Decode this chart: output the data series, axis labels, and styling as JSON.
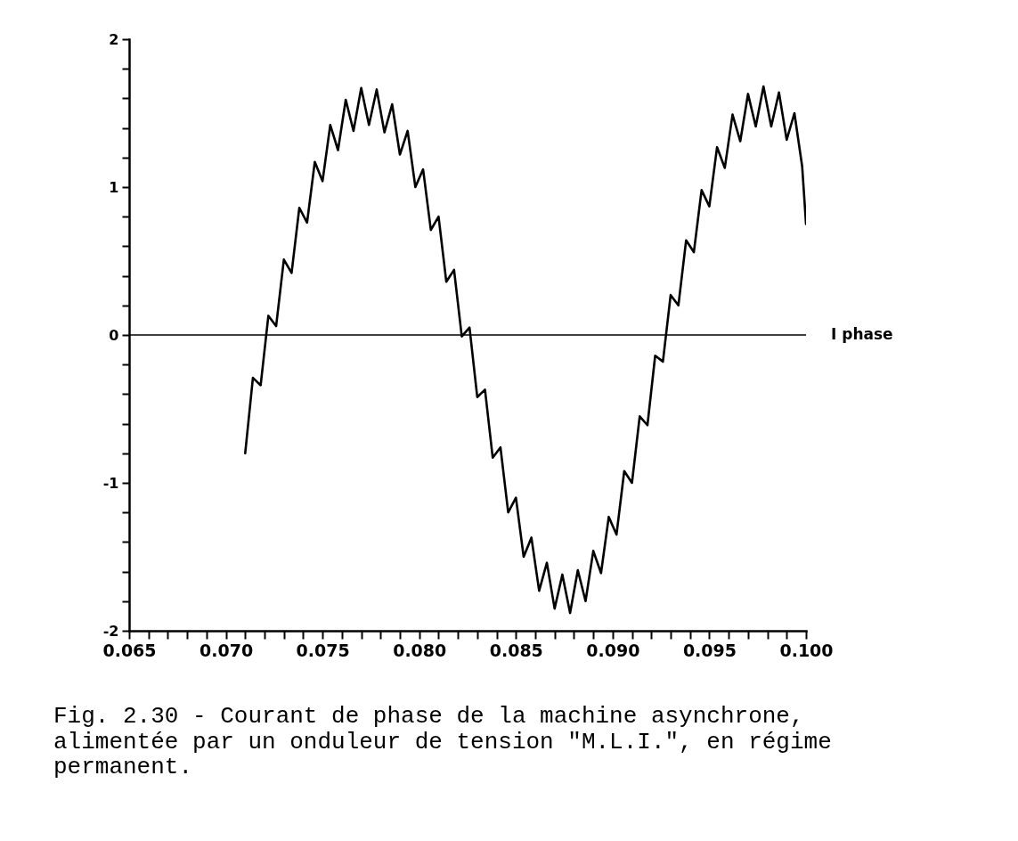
{
  "chart_data": {
    "type": "line",
    "xlim": [
      0.065,
      0.1
    ],
    "ylim": [
      -2,
      2
    ],
    "xticks": [
      0.065,
      {
        "value": 0.066,
        "label": null
      },
      {
        "value": 0.067,
        "label": null
      },
      {
        "value": 0.068,
        "label": null
      },
      {
        "value": 0.069,
        "label": null
      },
      {
        "value": 0.07,
        "label": "0.070"
      },
      {
        "value": 0.071,
        "label": null
      },
      {
        "value": 0.072,
        "label": null
      },
      {
        "value": 0.073,
        "label": null
      },
      {
        "value": 0.074,
        "label": null
      },
      0.075,
      {
        "value": 0.076,
        "label": null
      },
      {
        "value": 0.077,
        "label": null
      },
      {
        "value": 0.078,
        "label": null
      },
      {
        "value": 0.079,
        "label": null
      },
      {
        "value": 0.08,
        "label": "0.080"
      },
      {
        "value": 0.081,
        "label": null
      },
      {
        "value": 0.082,
        "label": null
      },
      {
        "value": 0.083,
        "label": null
      },
      {
        "value": 0.084,
        "label": null
      },
      0.085,
      {
        "value": 0.086,
        "label": null
      },
      {
        "value": 0.087,
        "label": null
      },
      {
        "value": 0.088,
        "label": null
      },
      {
        "value": 0.089,
        "label": null
      },
      {
        "value": 0.09,
        "label": "0.090"
      },
      {
        "value": 0.091,
        "label": null
      },
      {
        "value": 0.092,
        "label": null
      },
      {
        "value": 0.093,
        "label": null
      },
      {
        "value": 0.094,
        "label": null
      },
      0.095,
      {
        "value": 0.096,
        "label": null
      },
      {
        "value": 0.097,
        "label": null
      },
      {
        "value": 0.098,
        "label": null
      },
      {
        "value": 0.099,
        "label": null
      },
      {
        "value": 0.1,
        "label": "0.100"
      }
    ],
    "yticks": [
      -2,
      {
        "value": -1.8,
        "label": null
      },
      {
        "value": -1.6,
        "label": null
      },
      {
        "value": -1.4,
        "label": null
      },
      {
        "value": -1.2,
        "label": null
      },
      -1,
      {
        "value": -0.8,
        "label": null
      },
      {
        "value": -0.6,
        "label": null
      },
      {
        "value": -0.4,
        "label": null
      },
      {
        "value": -0.2,
        "label": null
      },
      0,
      {
        "value": 0.2,
        "label": null
      },
      {
        "value": 0.4,
        "label": null
      },
      {
        "value": 0.6,
        "label": null
      },
      {
        "value": 0.8,
        "label": null
      },
      1,
      {
        "value": 1.2,
        "label": null
      },
      {
        "value": 1.4,
        "label": null
      },
      {
        "value": 1.6,
        "label": null
      },
      {
        "value": 1.8,
        "label": null
      },
      2
    ],
    "grid": false,
    "line_style": "solid",
    "ref_lines": [
      {
        "axis": "y",
        "value": 0,
        "label": "I phase",
        "color": "#000000"
      }
    ],
    "annotations": [
      "Fig. 2.30 - Courant de phase de la machine asynchrone, alimentée par un onduleur de tension \"M.L.I.\", en régime permanent."
    ],
    "series": [
      {
        "color": "#000000",
        "x": [
          0.071,
          0.0714,
          0.0718,
          0.0722,
          0.0726,
          0.073,
          0.0734,
          0.0738,
          0.0742,
          0.0746,
          0.075,
          0.0754,
          0.0758,
          0.0762,
          0.0766,
          0.077,
          0.0774,
          0.0778,
          0.0782,
          0.0786,
          0.079,
          0.0794,
          0.0798,
          0.0802,
          0.0806,
          0.081,
          0.0814,
          0.0818,
          0.0822,
          0.0826,
          0.083,
          0.0834,
          0.0838,
          0.0842,
          0.0846,
          0.085,
          0.0854,
          0.0858,
          0.0862,
          0.0866,
          0.087,
          0.0874,
          0.0878,
          0.0882,
          0.0886,
          0.089,
          0.0894,
          0.0898,
          0.0902,
          0.0906,
          0.091,
          0.0914,
          0.0918,
          0.0922,
          0.0926,
          0.093,
          0.0934,
          0.0938,
          0.0942,
          0.0946,
          0.095,
          0.0954,
          0.0958,
          0.0962,
          0.0966,
          0.097,
          0.0974,
          0.0978,
          0.0982,
          0.0986,
          0.099,
          0.0994,
          0.0998,
          0.1
        ],
        "values": [
          -0.8,
          -0.29,
          -0.34,
          0.13,
          0.06,
          0.51,
          0.42,
          0.86,
          0.76,
          1.17,
          1.04,
          1.42,
          1.25,
          1.59,
          1.38,
          1.67,
          1.42,
          1.66,
          1.37,
          1.56,
          1.22,
          1.38,
          1.0,
          1.12,
          0.71,
          0.8,
          0.36,
          0.44,
          -0.01,
          0.05,
          -0.42,
          -0.37,
          -0.83,
          -0.76,
          -1.2,
          -1.1,
          -1.5,
          -1.37,
          -1.73,
          -1.54,
          -1.85,
          -1.62,
          -1.88,
          -1.59,
          -1.8,
          -1.46,
          -1.61,
          -1.23,
          -1.35,
          -0.92,
          -1.0,
          -0.55,
          -0.61,
          -0.14,
          -0.18,
          0.27,
          0.2,
          0.64,
          0.56,
          0.98,
          0.87,
          1.27,
          1.13,
          1.49,
          1.31,
          1.63,
          1.41,
          1.68,
          1.41,
          1.64,
          1.32,
          1.5,
          1.14,
          0.75
        ]
      }
    ]
  }
}
